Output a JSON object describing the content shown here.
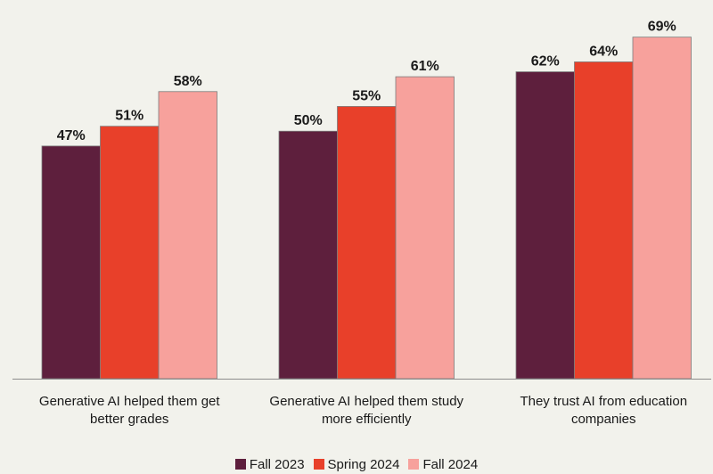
{
  "chart_data": {
    "type": "bar",
    "categories": [
      [
        "Generative AI helped them get",
        "better grades"
      ],
      [
        "Generative AI helped them study",
        "more efficiently"
      ],
      [
        "They trust AI from education",
        "companies"
      ]
    ],
    "series": [
      {
        "name": "Fall 2023",
        "color": "#5e1f3d",
        "values": [
          47,
          50,
          62
        ],
        "labels": [
          "47%",
          "50%",
          "62%"
        ]
      },
      {
        "name": "Spring 2024",
        "color": "#e8402a",
        "values": [
          51,
          55,
          64
        ],
        "labels": [
          "51%",
          "55%",
          "64%"
        ]
      },
      {
        "name": "Fall 2024",
        "color": "#f7a19c",
        "values": [
          58,
          61,
          69
        ],
        "labels": [
          "58%",
          "61%",
          "69%"
        ]
      }
    ],
    "ylim": [
      0,
      72
    ],
    "grid": false,
    "legend_position": "bottom",
    "axis_color": "#8c8c8c",
    "background": "#f2f2ec"
  }
}
